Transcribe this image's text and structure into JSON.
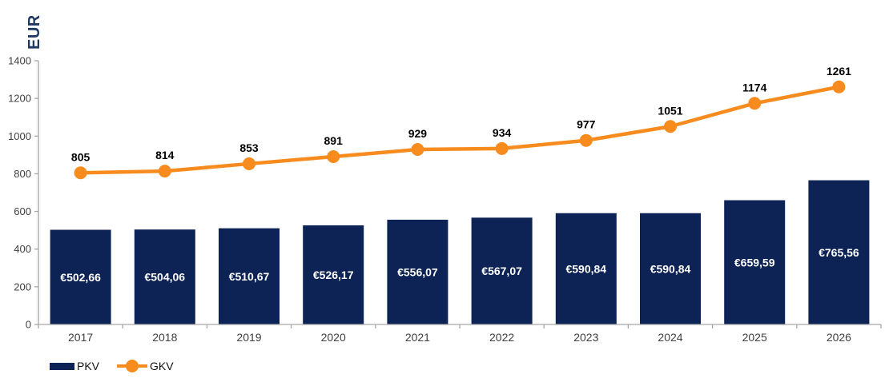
{
  "chart_data": {
    "type": "composite",
    "categories": [
      "2017",
      "2018",
      "2019",
      "2020",
      "2021",
      "2022",
      "2023",
      "2024",
      "2025",
      "2026"
    ],
    "series": [
      {
        "name": "PKV",
        "type": "bar",
        "values": [
          502.66,
          504.06,
          510.67,
          526.17,
          556.07,
          567.07,
          590.84,
          590.84,
          659.59,
          765.56
        ],
        "labels": [
          "€502,66",
          "€504,06",
          "€510,67",
          "€526,17",
          "€556,07",
          "€567,07",
          "€590,84",
          "€590,84",
          "€659,59",
          "€765,56"
        ]
      },
      {
        "name": "GKV",
        "type": "line",
        "values": [
          805,
          814,
          853,
          891,
          929,
          934,
          977,
          1051,
          1174,
          1261
        ],
        "labels": [
          "805",
          "814",
          "853",
          "891",
          "929",
          "934",
          "977",
          "1051",
          "1174",
          "1261"
        ]
      }
    ],
    "ylabel": "EUR",
    "ylim": [
      0,
      1400
    ],
    "yticks": [
      0,
      200,
      400,
      600,
      800,
      1000,
      1200,
      1400
    ],
    "grid": false,
    "legend_position": "bottom-left"
  },
  "colors": {
    "bar": "#0E2355",
    "line": "#F78B1E",
    "axis": "#A6A6A6",
    "tick_label": "#404040",
    "bar_label": "#FFFFFF",
    "line_label": "#000000",
    "axis_title": "#1F3864"
  }
}
